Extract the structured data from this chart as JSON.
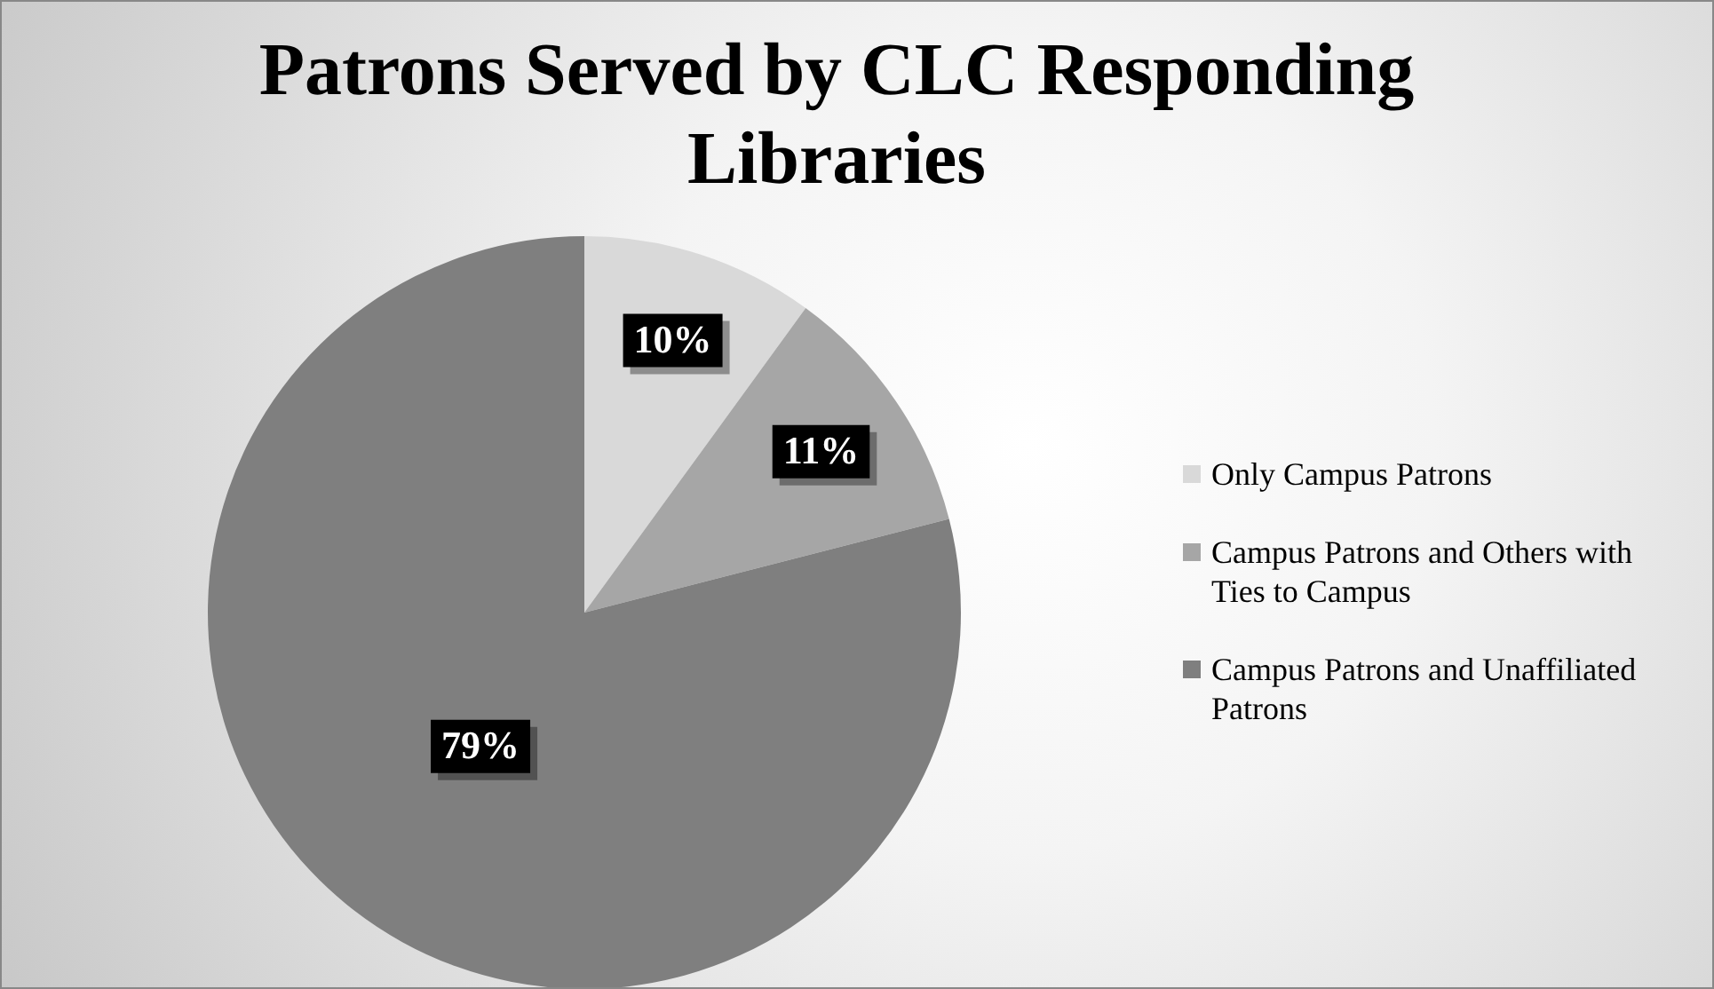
{
  "chart_data": {
    "type": "pie",
    "title": "Patrons Served by CLC Responding Libraries",
    "categories": [
      "Only Campus Patrons",
      "Campus Patrons and Others with Ties to Campus",
      "Campus Patrons and Unaffiliated Patrons"
    ],
    "values": [
      10,
      11,
      79
    ],
    "colors": [
      "#d9d9d9",
      "#a6a6a6",
      "#7f7f7f"
    ],
    "value_labels": [
      "10%",
      "11%",
      "79%"
    ],
    "legend": "right"
  }
}
